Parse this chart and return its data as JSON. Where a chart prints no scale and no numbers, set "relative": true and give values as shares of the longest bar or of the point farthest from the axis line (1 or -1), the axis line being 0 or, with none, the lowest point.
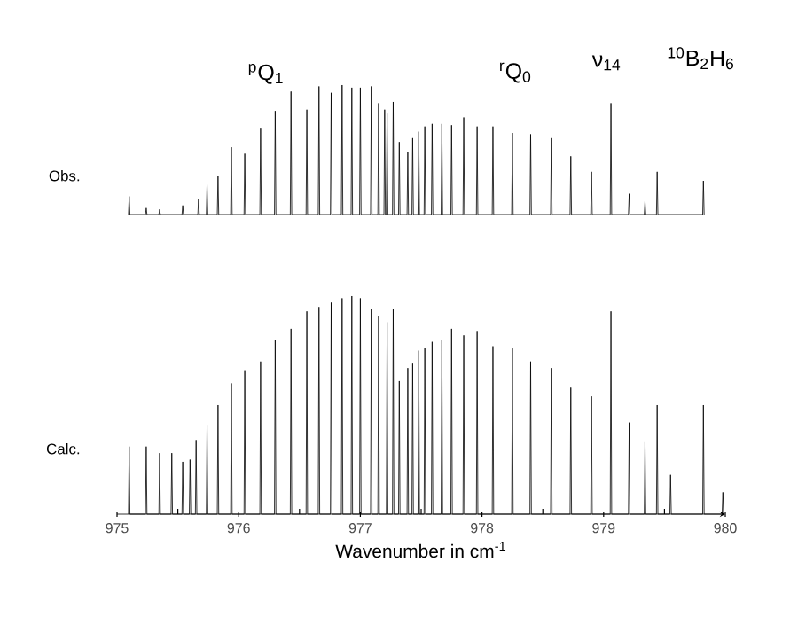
{
  "chart_data": [
    {
      "type": "line",
      "relative": true,
      "xlim": [
        975,
        980
      ],
      "tick_labels": false,
      "annotations": [
        "$^{p}$Q$_{1}$",
        "$^{r}$Q$_{0}$",
        "ν$_{14}$",
        "$^{10}$B$_{2}$H$_{6}$"
      ],
      "series": [
        {
          "name": "Obs.",
          "color": "#000000",
          "x": [
            975.094,
            975.1,
            975.106,
            975.234,
            975.24,
            975.246,
            975.344,
            975.35,
            975.356,
            975.534,
            975.54,
            975.546,
            975.664,
            975.67,
            975.676,
            975.734,
            975.74,
            975.746,
            975.824,
            975.83,
            975.836,
            975.934,
            975.94,
            975.946,
            976.044,
            976.05,
            976.056,
            976.174,
            976.18,
            976.186,
            976.294,
            976.3,
            976.306,
            976.424,
            976.43,
            976.436,
            976.554,
            976.56,
            976.566,
            976.654,
            976.66,
            976.666,
            976.754,
            976.76,
            976.766,
            976.844,
            976.85,
            976.856,
            976.924,
            976.93,
            976.936,
            976.994,
            977,
            977.006,
            977.084,
            977.09,
            977.096,
            977.144,
            977.15,
            977.156,
            977.194,
            977.2,
            977.206,
            977.214,
            977.22,
            977.226,
            977.264,
            977.27,
            977.276,
            977.314,
            977.32,
            977.326,
            977.384,
            977.39,
            977.396,
            977.424,
            977.43,
            977.436,
            977.474,
            977.48,
            977.486,
            977.524,
            977.53,
            977.536,
            977.584,
            977.59,
            977.596,
            977.664,
            977.67,
            977.676,
            977.744,
            977.75,
            977.756,
            977.844,
            977.85,
            977.856,
            977.954,
            977.96,
            977.966,
            978.084,
            978.09,
            978.096,
            978.244,
            978.25,
            978.256,
            978.394,
            978.4,
            978.406,
            978.564,
            978.57,
            978.576,
            978.724,
            978.73,
            978.736,
            978.894,
            978.9,
            978.906,
            979.054,
            979.06,
            979.066,
            979.204,
            979.21,
            979.216,
            979.334,
            979.34,
            979.346,
            979.434,
            979.44,
            979.446,
            979.814,
            979.82,
            979.826
          ],
          "values": [
            0,
            0.14,
            0,
            0,
            0.05,
            0,
            0,
            0.04,
            0,
            0,
            0.07,
            0,
            0,
            0.12,
            0,
            0,
            0.23,
            0,
            0,
            0.3,
            0,
            0,
            0.52,
            0,
            0,
            0.47,
            0,
            0,
            0.67,
            0,
            0,
            0.8,
            0,
            0,
            0.95,
            0,
            0,
            0.81,
            0,
            0,
            0.99,
            0,
            0,
            0.94,
            0,
            0,
            1.0,
            0,
            0,
            0.98,
            0,
            0,
            0.98,
            0,
            0,
            0.99,
            0,
            0,
            0.86,
            0,
            0,
            0.81,
            0,
            0,
            0.78,
            0,
            0,
            0.87,
            0,
            0,
            0.56,
            0,
            0,
            0.48,
            0,
            0,
            0.59,
            0,
            0,
            0.64,
            0,
            0,
            0.68,
            0,
            0,
            0.7,
            0,
            0,
            0.7,
            0,
            0,
            0.69,
            0,
            0,
            0.75,
            0,
            0,
            0.68,
            0,
            0,
            0.68,
            0,
            0,
            0.63,
            0,
            0,
            0.62,
            0,
            0,
            0.59,
            0,
            0,
            0.45,
            0,
            0,
            0.33,
            0,
            0,
            0.86,
            0,
            0,
            0.16,
            0,
            0,
            0.1,
            0,
            0,
            0.33,
            0,
            0,
            0.26,
            0
          ]
        }
      ]
    },
    {
      "type": "line",
      "relative": true,
      "xlim": [
        975,
        980
      ],
      "tick_labels": "x",
      "xticks": [
        975,
        {
          "value": 975.5,
          "label": null
        },
        976,
        {
          "value": 976.5,
          "label": null
        },
        977,
        {
          "value": 977.5,
          "label": null
        },
        978,
        {
          "value": 978.5,
          "label": null
        },
        979,
        {
          "value": 979.5,
          "label": null
        },
        980
      ],
      "xlabel": "Wavenumber in cm$^{-1}$",
      "series": [
        {
          "name": "Calc.",
          "color": "#000000",
          "x": [
            975.094,
            975.1,
            975.106,
            975.234,
            975.24,
            975.246,
            975.344,
            975.35,
            975.356,
            975.444,
            975.45,
            975.456,
            975.534,
            975.54,
            975.546,
            975.594,
            975.6,
            975.606,
            975.644,
            975.65,
            975.656,
            975.734,
            975.74,
            975.746,
            975.824,
            975.83,
            975.836,
            975.934,
            975.94,
            975.946,
            976.044,
            976.05,
            976.056,
            976.174,
            976.18,
            976.186,
            976.294,
            976.3,
            976.306,
            976.424,
            976.43,
            976.436,
            976.554,
            976.56,
            976.566,
            976.654,
            976.66,
            976.666,
            976.754,
            976.76,
            976.766,
            976.844,
            976.85,
            976.856,
            976.924,
            976.93,
            976.936,
            976.994,
            977,
            977.006,
            977.084,
            977.09,
            977.096,
            977.144,
            977.15,
            977.156,
            977.214,
            977.22,
            977.226,
            977.264,
            977.27,
            977.276,
            977.314,
            977.32,
            977.326,
            977.384,
            977.39,
            977.396,
            977.424,
            977.43,
            977.436,
            977.474,
            977.48,
            977.486,
            977.524,
            977.53,
            977.536,
            977.584,
            977.59,
            977.596,
            977.664,
            977.67,
            977.676,
            977.744,
            977.75,
            977.756,
            977.844,
            977.85,
            977.856,
            977.954,
            977.96,
            977.966,
            978.084,
            978.09,
            978.096,
            978.244,
            978.25,
            978.256,
            978.394,
            978.4,
            978.406,
            978.564,
            978.57,
            978.576,
            978.724,
            978.73,
            978.736,
            978.894,
            978.9,
            978.906,
            979.054,
            979.06,
            979.066,
            979.204,
            979.21,
            979.216,
            979.334,
            979.34,
            979.346,
            979.434,
            979.44,
            979.446,
            979.544,
            979.55,
            979.556,
            979.814,
            979.82,
            979.826,
            979.974,
            979.98,
            979.986
          ],
          "values": [
            0,
            0.31,
            0,
            0,
            0.31,
            0,
            0,
            0.28,
            0,
            0,
            0.28,
            0,
            0,
            0.24,
            0,
            0,
            0.25,
            0,
            0,
            0.34,
            0,
            0,
            0.41,
            0,
            0,
            0.5,
            0,
            0,
            0.6,
            0,
            0,
            0.66,
            0,
            0,
            0.7,
            0,
            0,
            0.8,
            0,
            0,
            0.85,
            0,
            0,
            0.93,
            0,
            0,
            0.95,
            0,
            0,
            0.97,
            0,
            0,
            0.99,
            0,
            0,
            1.0,
            0,
            0,
            0.99,
            0,
            0,
            0.94,
            0,
            0,
            0.91,
            0,
            0,
            0.88,
            0,
            0,
            0.94,
            0,
            0,
            0.61,
            0,
            0,
            0.67,
            0,
            0,
            0.69,
            0,
            0,
            0.75,
            0,
            0,
            0.76,
            0,
            0,
            0.79,
            0,
            0,
            0.8,
            0,
            0,
            0.85,
            0,
            0,
            0.82,
            0,
            0,
            0.84,
            0,
            0,
            0.77,
            0,
            0,
            0.76,
            0,
            0,
            0.7,
            0,
            0,
            0.67,
            0,
            0,
            0.58,
            0,
            0,
            0.54,
            0,
            0,
            0.93,
            0,
            0,
            0.42,
            0,
            0,
            0.33,
            0,
            0,
            0.5,
            0,
            0,
            0.18,
            0,
            0,
            0.5,
            0,
            0,
            0.1,
            0
          ]
        }
      ]
    }
  ]
}
